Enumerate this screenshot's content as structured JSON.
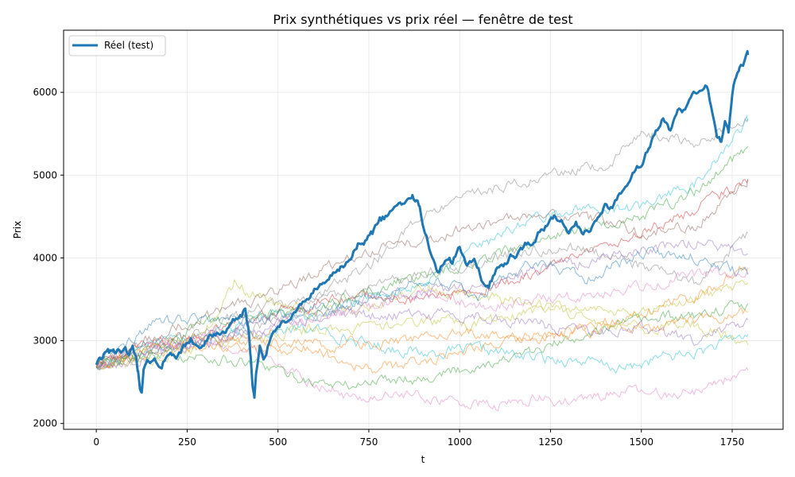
{
  "chart_data": {
    "type": "line",
    "title": "Prix synthétiques vs prix réel — fenêtre de test",
    "xlabel": "t",
    "ylabel": "Prix",
    "xlim": [
      -90,
      1890
    ],
    "ylim": [
      1930,
      6750
    ],
    "xticks": [
      0,
      250,
      500,
      750,
      1000,
      1250,
      1500,
      1750
    ],
    "yticks": [
      2000,
      3000,
      4000,
      5000,
      6000
    ],
    "grid": true,
    "legend": {
      "position": "top-left",
      "entries": [
        "Réel (test)"
      ]
    },
    "series": [
      {
        "name": "Réel (test)",
        "color": "#1f77b4",
        "x": [
          0,
          10,
          20,
          35,
          50,
          60,
          70,
          80,
          90,
          100,
          110,
          115,
          120,
          125,
          130,
          140,
          160,
          180,
          200,
          220,
          240,
          260,
          280,
          300,
          320,
          340,
          360,
          380,
          400,
          410,
          420,
          425,
          430,
          435,
          440,
          450,
          460,
          480,
          500,
          520,
          540,
          560,
          580,
          600,
          620,
          640,
          660,
          680,
          700,
          720,
          740,
          760,
          780,
          800,
          820,
          840,
          860,
          870,
          880,
          890,
          900,
          920,
          940,
          960,
          980,
          1000,
          1020,
          1040,
          1060,
          1080,
          1100,
          1120,
          1140,
          1160,
          1180,
          1200,
          1220,
          1240,
          1260,
          1280,
          1300,
          1320,
          1340,
          1360,
          1380,
          1400,
          1420,
          1440,
          1460,
          1480,
          1500,
          1520,
          1540,
          1560,
          1580,
          1600,
          1620,
          1640,
          1660,
          1680,
          1700,
          1710,
          1720,
          1730,
          1740,
          1750,
          1760,
          1770,
          1780,
          1793
        ],
        "values": [
          2700,
          2760,
          2800,
          2850,
          2870,
          2900,
          2830,
          2860,
          2800,
          2900,
          2750,
          2600,
          2420,
          2380,
          2600,
          2720,
          2750,
          2700,
          2850,
          2750,
          2900,
          3000,
          2900,
          3000,
          3050,
          3080,
          3150,
          3250,
          3300,
          3380,
          3100,
          2800,
          2450,
          2300,
          2600,
          2900,
          2750,
          3050,
          3200,
          3250,
          3300,
          3450,
          3500,
          3600,
          3650,
          3750,
          3800,
          3900,
          4000,
          4150,
          4200,
          4300,
          4450,
          4500,
          4600,
          4650,
          4700,
          4750,
          4700,
          4600,
          4400,
          4100,
          3800,
          4000,
          3950,
          4150,
          3900,
          3950,
          3750,
          3700,
          3850,
          3900,
          4000,
          4050,
          4150,
          4200,
          4300,
          4400,
          4500,
          4450,
          4250,
          4400,
          4300,
          4350,
          4500,
          4650,
          4600,
          4750,
          4900,
          5050,
          5150,
          5350,
          5500,
          5700,
          5500,
          5800,
          5750,
          5950,
          6000,
          6050,
          5700,
          5450,
          5400,
          5700,
          5500,
          5950,
          6200,
          6300,
          6350,
          6450
        ],
        "emphasis": true
      },
      {
        "name": "",
        "color": "#17becf",
        "x": [
          0,
          150,
          300,
          450,
          600,
          750,
          900,
          1050,
          1200,
          1350,
          1450,
          1550,
          1650,
          1793
        ],
        "values": [
          2700,
          2900,
          3050,
          3100,
          3150,
          2950,
          2850,
          2900,
          2800,
          2750,
          2650,
          2800,
          2850,
          3080
        ],
        "emphasis": false
      },
      {
        "name": "",
        "color": "#e377c2",
        "x": [
          0,
          150,
          300,
          450,
          600,
          700,
          850,
          1000,
          1100,
          1200,
          1300,
          1450,
          1550,
          1650,
          1793
        ],
        "values": [
          2700,
          2950,
          3000,
          2850,
          2500,
          2300,
          2350,
          2250,
          2200,
          2300,
          2250,
          2400,
          2350,
          2400,
          2640
        ],
        "emphasis": false
      },
      {
        "name": "",
        "color": "#ff7f0e",
        "x": [
          0,
          150,
          300,
          450,
          600,
          750,
          900,
          1050,
          1200,
          1350,
          1500,
          1650,
          1793
        ],
        "values": [
          2700,
          2850,
          2950,
          2900,
          2900,
          2650,
          2750,
          2950,
          3000,
          3150,
          3350,
          3550,
          3880
        ],
        "emphasis": false
      },
      {
        "name": "",
        "color": "#2ca02c",
        "x": [
          0,
          150,
          300,
          450,
          600,
          700,
          800,
          900,
          1050,
          1200,
          1350,
          1500,
          1650,
          1793
        ],
        "values": [
          2700,
          2850,
          2800,
          2700,
          2500,
          2450,
          2550,
          2550,
          2700,
          2850,
          3100,
          3250,
          3300,
          3450
        ],
        "emphasis": false
      },
      {
        "name": "",
        "color": "#7f7f7f",
        "x": [
          0,
          150,
          300,
          450,
          600,
          750,
          900,
          1050,
          1250,
          1400,
          1500,
          1650,
          1793
        ],
        "values": [
          2700,
          2950,
          3150,
          3400,
          3550,
          3900,
          4500,
          4800,
          5000,
          5100,
          5500,
          5400,
          5680
        ],
        "emphasis": false
      },
      {
        "name": "",
        "color": "#bcbd22",
        "x": [
          0,
          150,
          300,
          380,
          450,
          600,
          750,
          900,
          1050,
          1200,
          1350,
          1500,
          1650,
          1793
        ],
        "values": [
          2700,
          2950,
          3100,
          3700,
          3500,
          3350,
          3400,
          3650,
          3550,
          3450,
          3300,
          3150,
          3200,
          2950
        ],
        "emphasis": false
      },
      {
        "name": "",
        "color": "#d62728",
        "x": [
          0,
          150,
          300,
          450,
          600,
          750,
          900,
          1050,
          1200,
          1350,
          1500,
          1650,
          1793
        ],
        "values": [
          2700,
          2950,
          3100,
          3300,
          3450,
          3550,
          3500,
          3600,
          3800,
          4050,
          4300,
          4600,
          4950
        ],
        "emphasis": false
      },
      {
        "name": "",
        "color": "#9467bd",
        "x": [
          0,
          150,
          300,
          450,
          600,
          750,
          900,
          1050,
          1200,
          1350,
          1500,
          1650,
          1793
        ],
        "values": [
          2700,
          2900,
          2950,
          3100,
          3300,
          3550,
          3600,
          3650,
          3850,
          3950,
          4100,
          4200,
          4050
        ],
        "emphasis": false
      },
      {
        "name": "",
        "color": "#8c564b",
        "x": [
          0,
          150,
          300,
          450,
          600,
          750,
          900,
          1050,
          1200,
          1350,
          1500,
          1650,
          1793
        ],
        "values": [
          2700,
          3050,
          3300,
          3500,
          3800,
          4100,
          4200,
          4400,
          4500,
          4500,
          4300,
          4400,
          4950
        ],
        "emphasis": false
      },
      {
        "name": "",
        "color": "#1f77b4",
        "x": [
          0,
          150,
          300,
          450,
          600,
          750,
          900,
          1050,
          1200,
          1350,
          1500,
          1650,
          1793
        ],
        "values": [
          2700,
          3200,
          3300,
          3250,
          3400,
          3450,
          3750,
          3550,
          3950,
          3750,
          4050,
          4000,
          3800
        ],
        "emphasis": false
      },
      {
        "name": "",
        "color": "#17becf",
        "x": [
          0,
          150,
          300,
          450,
          600,
          750,
          900,
          1050,
          1200,
          1350,
          1500,
          1650,
          1793
        ],
        "values": [
          2700,
          2950,
          3050,
          3300,
          3300,
          3550,
          3700,
          4150,
          4450,
          4600,
          4600,
          4900,
          5650
        ],
        "emphasis": false
      },
      {
        "name": "",
        "color": "#2ca02c",
        "x": [
          0,
          150,
          300,
          450,
          600,
          750,
          900,
          1050,
          1200,
          1350,
          1500,
          1650,
          1793
        ],
        "values": [
          2700,
          2850,
          3200,
          3300,
          3350,
          3600,
          3800,
          3950,
          4200,
          4350,
          4500,
          4800,
          5350
        ],
        "emphasis": false
      },
      {
        "name": "",
        "color": "#e377c2",
        "x": [
          0,
          150,
          300,
          450,
          600,
          750,
          900,
          1050,
          1200,
          1350,
          1500,
          1650,
          1793
        ],
        "values": [
          2700,
          2950,
          3050,
          3100,
          3250,
          3400,
          3600,
          3400,
          3500,
          3550,
          3650,
          3800,
          3800
        ],
        "emphasis": false
      },
      {
        "name": "",
        "color": "#bcbd22",
        "x": [
          0,
          150,
          300,
          450,
          600,
          750,
          900,
          1050,
          1200,
          1350,
          1500,
          1650,
          1793
        ],
        "values": [
          2700,
          2750,
          2950,
          3050,
          3150,
          3150,
          3250,
          3200,
          3350,
          3400,
          3300,
          3500,
          3700
        ],
        "emphasis": false
      },
      {
        "name": "",
        "color": "#7f7f7f",
        "x": [
          0,
          150,
          300,
          450,
          600,
          750,
          900,
          1050,
          1200,
          1350,
          1500,
          1650,
          1793
        ],
        "values": [
          2700,
          2850,
          3000,
          3200,
          3450,
          3650,
          3800,
          3950,
          4100,
          4100,
          3900,
          3700,
          4300
        ],
        "emphasis": false
      },
      {
        "name": "",
        "color": "#ff7f0e",
        "x": [
          0,
          150,
          300,
          450,
          600,
          750,
          900,
          1050,
          1200,
          1350,
          1500,
          1650,
          1793
        ],
        "values": [
          2700,
          2900,
          3050,
          3000,
          2950,
          2950,
          3050,
          3100,
          3050,
          3100,
          3150,
          3250,
          3350
        ],
        "emphasis": false
      },
      {
        "name": "",
        "color": "#9467bd",
        "x": [
          0,
          150,
          300,
          450,
          600,
          750,
          900,
          1050,
          1200,
          1350,
          1500,
          1650,
          1793
        ],
        "values": [
          2700,
          2800,
          3000,
          3250,
          3350,
          3300,
          3300,
          3300,
          3200,
          3100,
          3150,
          3000,
          3250
        ],
        "emphasis": false
      }
    ]
  }
}
